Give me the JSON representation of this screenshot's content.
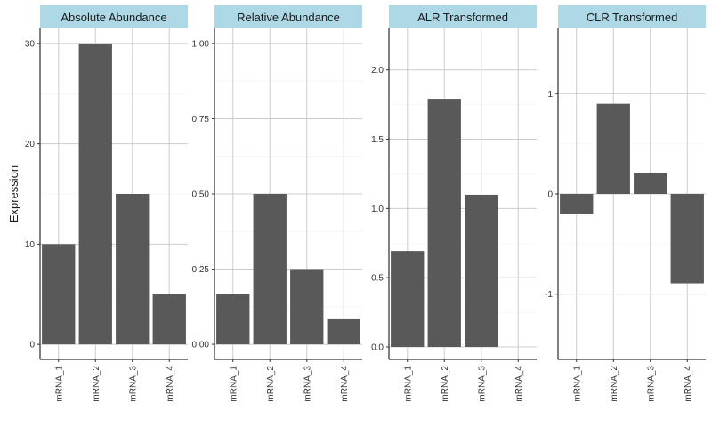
{
  "chart_data": {
    "type": "bar",
    "ylabel": "Expression",
    "xlabel": "",
    "categories": [
      "mRNA_1",
      "mRNA_2",
      "mRNA_3",
      "mRNA_4"
    ],
    "bar_color": "#595959",
    "strip_color": "#add8e6",
    "grid_color": "#cccccc",
    "panels": [
      {
        "title": "Absolute Abundance",
        "values": [
          10,
          30,
          15,
          5
        ],
        "ylim": [
          -1.5,
          31.5
        ],
        "yticks": [
          0,
          10,
          20,
          30
        ],
        "ytick_labels": [
          "0",
          "10",
          "20",
          "30"
        ]
      },
      {
        "title": "Relative Abundance",
        "values": [
          0.1667,
          0.5,
          0.25,
          0.0833
        ],
        "ylim": [
          -0.05,
          1.05
        ],
        "yticks": [
          0,
          0.25,
          0.5,
          0.75,
          1.0
        ],
        "ytick_labels": [
          "0.00",
          "0.25",
          "0.50",
          "0.75",
          "1.00"
        ]
      },
      {
        "title": "ALR Transformed",
        "values": [
          0.693,
          1.792,
          1.099,
          0
        ],
        "ylim": [
          -0.09,
          2.3
        ],
        "yticks": [
          0,
          0.5,
          1.0,
          1.5,
          2.0
        ],
        "ytick_labels": [
          "0.0",
          "0.5",
          "1.0",
          "1.5",
          "2.0"
        ]
      },
      {
        "title": "CLR Transformed",
        "values": [
          -0.199,
          0.899,
          0.206,
          -0.892
        ],
        "ylim": [
          -1.65,
          1.65
        ],
        "yticks": [
          -1,
          0,
          1
        ],
        "ytick_labels": [
          "-1",
          "0",
          "1"
        ]
      }
    ]
  }
}
